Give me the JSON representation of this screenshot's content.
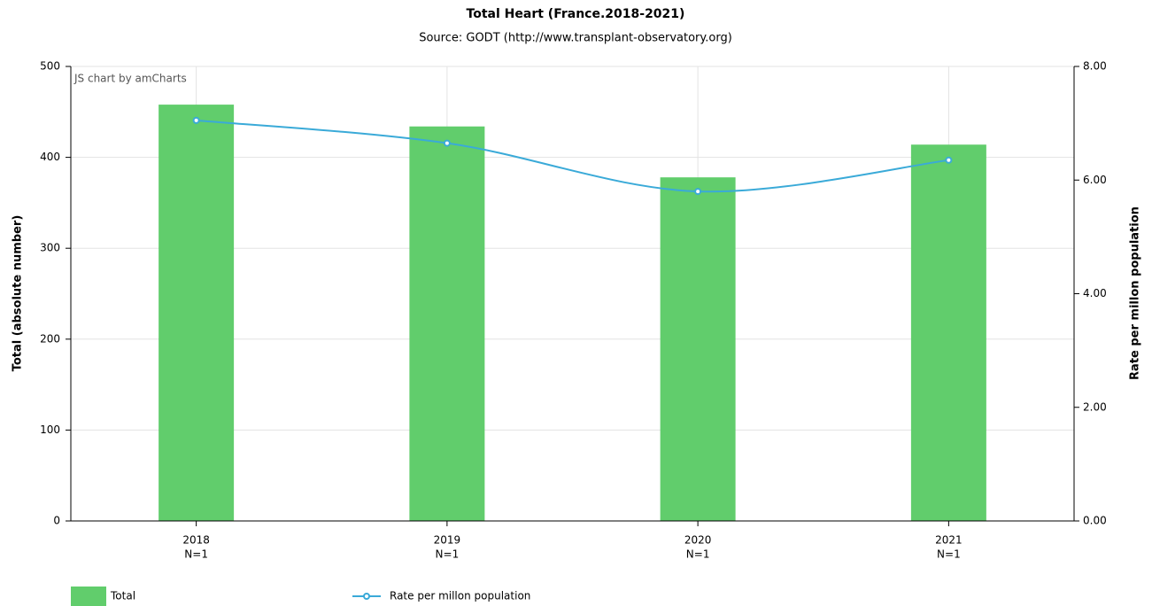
{
  "chart_data": {
    "type": "bar_line",
    "title": "Total Heart (France.2018-2021)",
    "subtitle": "Source: GODT (http://www.transplant-observatory.org)",
    "credit": "JS chart by amCharts",
    "ylabel": "Total (absolute number)",
    "y2label": "Rate per millon population",
    "categories": [
      "2018",
      "2019",
      "2020",
      "2021"
    ],
    "category_sublabels": [
      "N=1",
      "N=1",
      "N=1",
      "N=1"
    ],
    "series": [
      {
        "name": "Total",
        "type": "bar",
        "color": "#61cd6c",
        "values": [
          458,
          434,
          378,
          414
        ]
      },
      {
        "name": "Rate per millon population",
        "type": "line",
        "axis": "y2",
        "color": "#3aaad8",
        "values": [
          7.05,
          6.65,
          5.8,
          6.35
        ]
      }
    ],
    "ylim": [
      0,
      500
    ],
    "yticks": [
      0,
      100,
      200,
      300,
      400,
      500
    ],
    "y2lim": [
      0,
      8
    ],
    "y2ticks": [
      {
        "value": 0,
        "label": "0.00"
      },
      {
        "value": 2,
        "label": "2.00"
      },
      {
        "value": 4,
        "label": "4.00"
      },
      {
        "value": 6,
        "label": "6.00"
      },
      {
        "value": 8,
        "label": "8.00"
      }
    ],
    "grid": true
  }
}
